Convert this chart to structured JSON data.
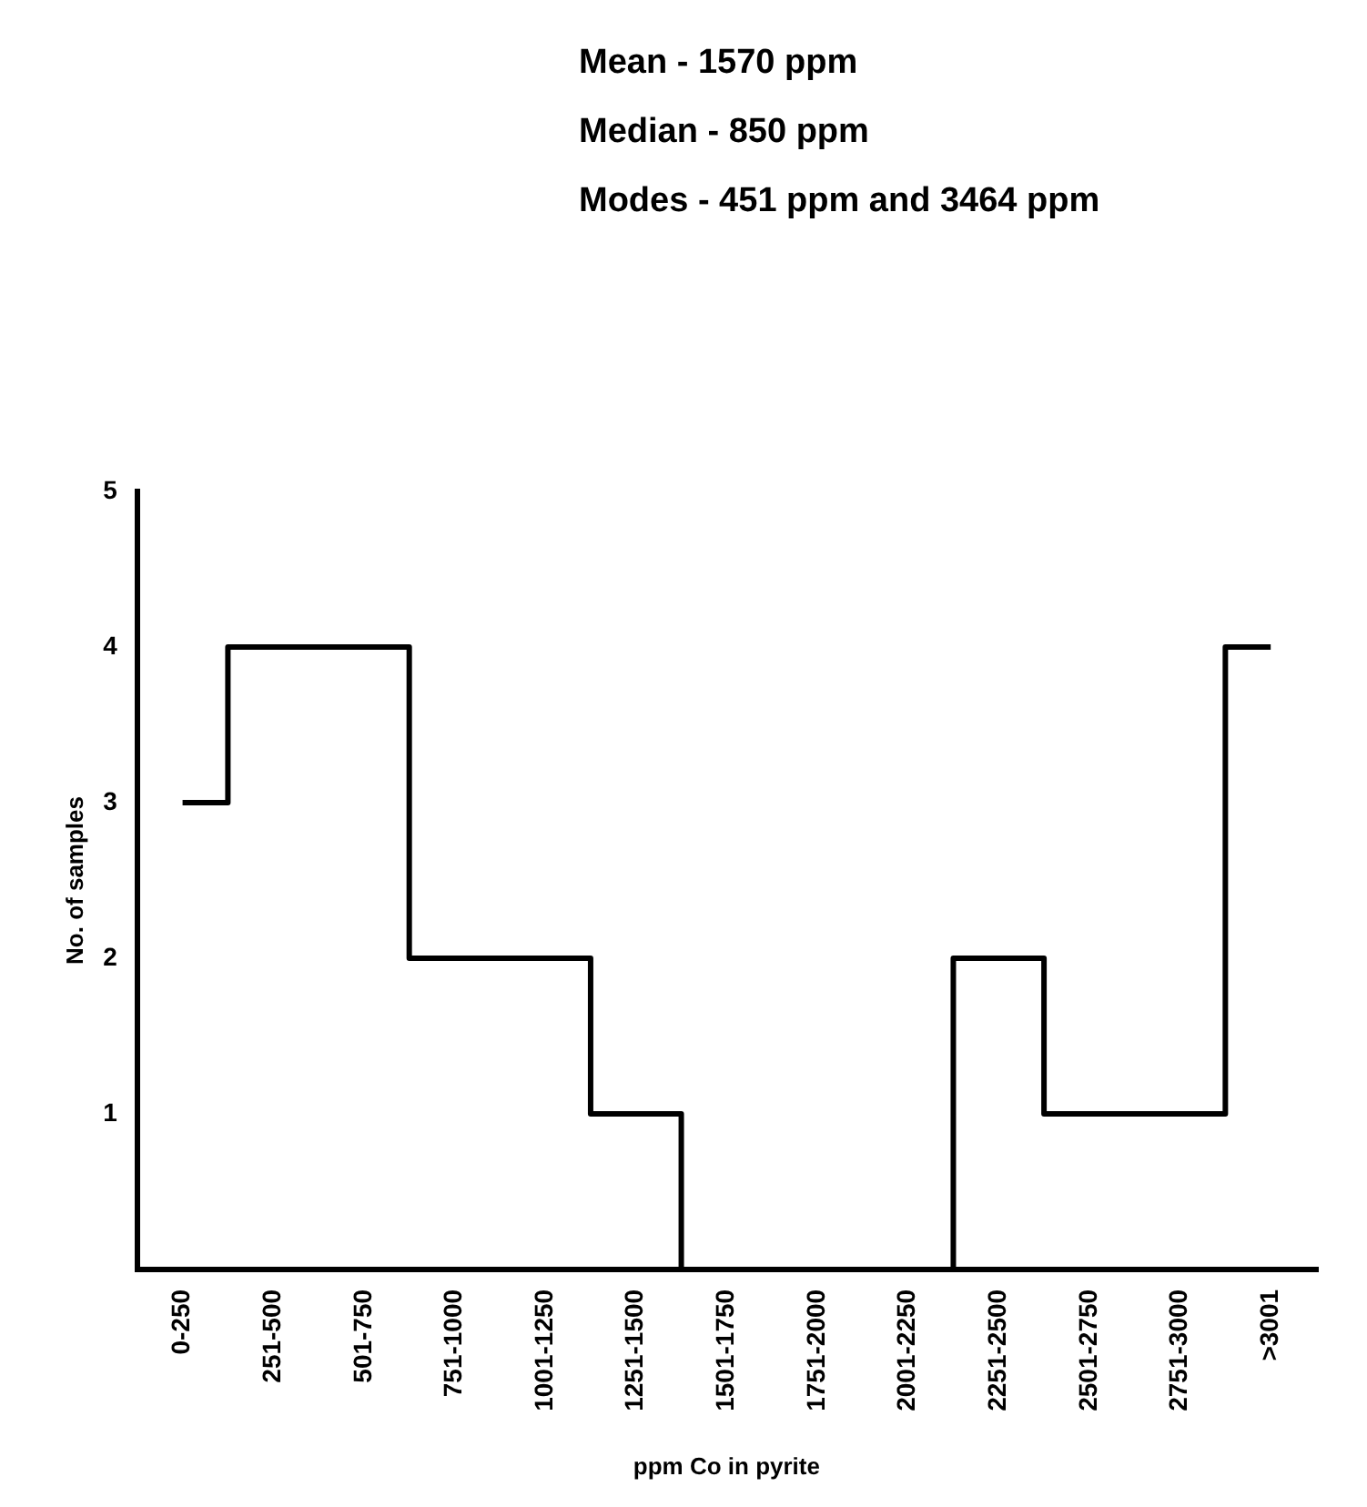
{
  "chart_data": {
    "type": "step",
    "xlabel": "ppm Co in pyrite",
    "ylabel": "No. of samples",
    "annotations": [
      "Mean - 1570 ppm",
      "Median - 850 ppm",
      "Modes - 451 ppm and 3464 ppm"
    ],
    "categories": [
      "0-250",
      "251-500",
      "501-750",
      "751-1000",
      "1001-1250",
      "1251-1500",
      "1501-1750",
      "1751-2000",
      "2001-2250",
      "2251-2500",
      "2501-2750",
      "2751-3000",
      ">3001"
    ],
    "values": [
      3,
      4,
      4,
      2,
      2,
      1,
      0,
      0,
      0,
      2,
      1,
      1,
      4
    ],
    "color": "#000000",
    "ylim": [
      0,
      5
    ],
    "yticks": [
      1,
      2,
      3,
      4,
      5
    ],
    "grid": false,
    "legend": false
  }
}
